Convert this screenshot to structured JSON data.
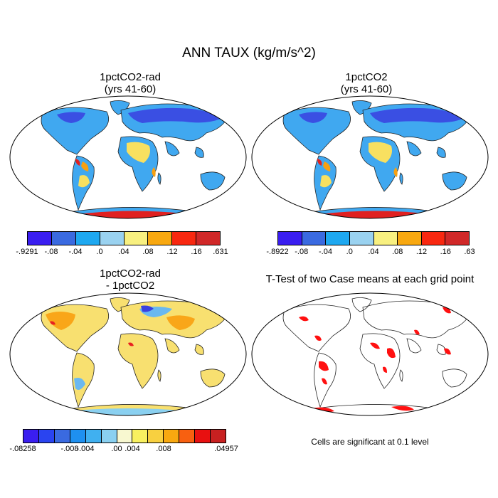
{
  "title": "ANN TAUX (kg/m/s^2)",
  "panels": [
    {
      "title": "1pctCO2-rad\n(yrs 41-60)",
      "colorbar": {
        "colors": [
          "#3a1ef0",
          "#3a6ae0",
          "#1ea8f0",
          "#9ad2f0",
          "#f8f080",
          "#f8a810",
          "#f82810",
          "#d02828"
        ],
        "labels": [
          "-.9291",
          "-.08",
          "-.04",
          ".0",
          ".04",
          ".08",
          ".12",
          ".16",
          ".631"
        ]
      }
    },
    {
      "title": "1pctCO2\n(yrs 41-60)",
      "colorbar": {
        "colors": [
          "#3a1ef0",
          "#3a6ae0",
          "#1ea8f0",
          "#9ad2f0",
          "#f8f080",
          "#f8a810",
          "#f82810",
          "#d02828"
        ],
        "labels": [
          "-.8922",
          "-.08",
          "-.04",
          ".0",
          ".04",
          ".08",
          ".12",
          ".16",
          ".63"
        ]
      }
    },
    {
      "title": "1pctCO2-rad\n- 1pctCO2",
      "colorbar": {
        "colors": [
          "#3a1ef0",
          "#2a44f0",
          "#3a6ae0",
          "#1e90f0",
          "#40b0f0",
          "#8ad0f0",
          "#f8f8d0",
          "#f8f060",
          "#f8d040",
          "#f8a810",
          "#f86010",
          "#e81010",
          "#c82020"
        ],
        "labels": [
          "-.08258",
          "-.008",
          "-.004",
          ".00",
          ".004",
          ".008",
          ".04957"
        ]
      }
    },
    {
      "title": "T-Test of two Case means at each grid point",
      "note": "Cells are significant at 0.1 level"
    }
  ]
}
